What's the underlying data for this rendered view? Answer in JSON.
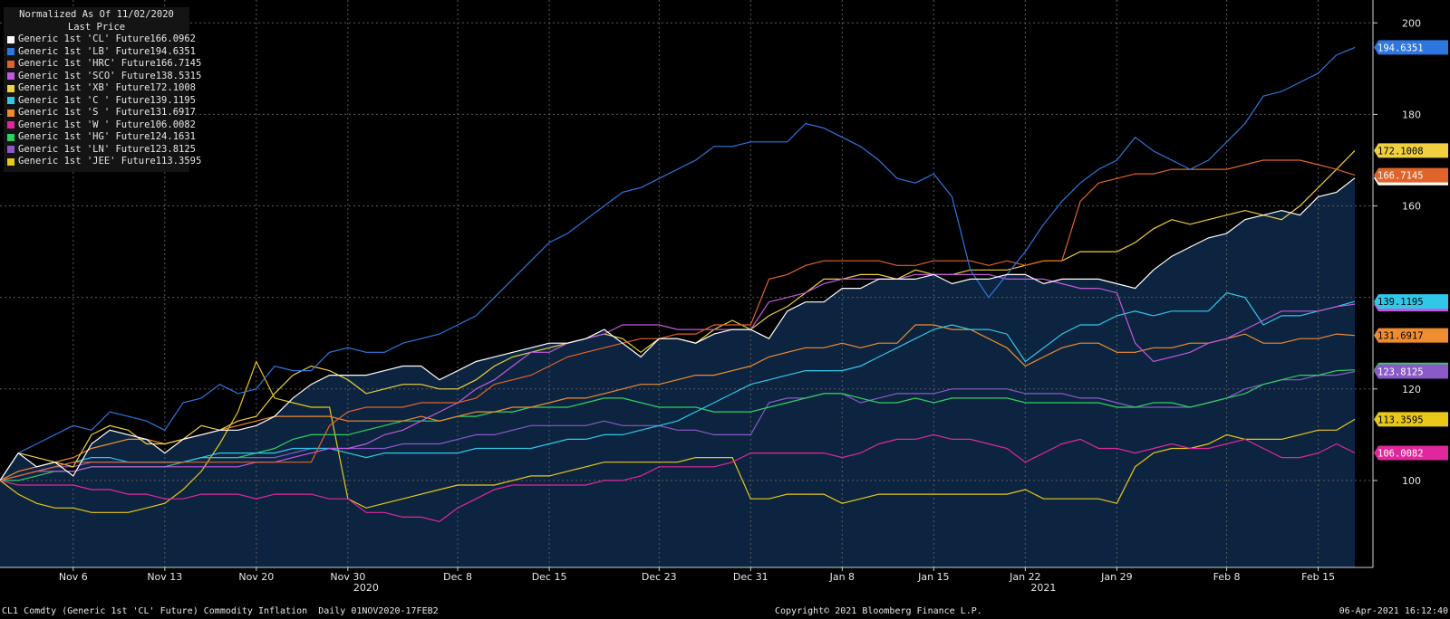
{
  "legend": {
    "title": "Normalized As Of 11/02/2020",
    "subtitle": "Last Price"
  },
  "footer": {
    "left": "CL1 Comdty (Generic 1st 'CL' Future) Commodity Inflation  Daily 01NOV2020-17FEB2",
    "center": "Copyright© 2021 Bloomberg Finance L.P.",
    "right": "06-Apr-2021 16:12:40"
  },
  "chart_data": {
    "type": "line",
    "x": [
      "2020-11-02",
      "2020-11-03",
      "2020-11-04",
      "2020-11-05",
      "2020-11-06",
      "2020-11-09",
      "2020-11-10",
      "2020-11-11",
      "2020-11-12",
      "2020-11-13",
      "2020-11-16",
      "2020-11-17",
      "2020-11-18",
      "2020-11-19",
      "2020-11-20",
      "2020-11-23",
      "2020-11-24",
      "2020-11-25",
      "2020-11-27",
      "2020-11-30",
      "2020-12-01",
      "2020-12-02",
      "2020-12-03",
      "2020-12-04",
      "2020-12-07",
      "2020-12-08",
      "2020-12-09",
      "2020-12-10",
      "2020-12-11",
      "2020-12-14",
      "2020-12-15",
      "2020-12-16",
      "2020-12-17",
      "2020-12-18",
      "2020-12-21",
      "2020-12-22",
      "2020-12-23",
      "2020-12-24",
      "2020-12-28",
      "2020-12-29",
      "2020-12-30",
      "2020-12-31",
      "2021-01-04",
      "2021-01-05",
      "2021-01-06",
      "2021-01-07",
      "2021-01-08",
      "2021-01-11",
      "2021-01-12",
      "2021-01-13",
      "2021-01-14",
      "2021-01-15",
      "2021-01-18",
      "2021-01-19",
      "2021-01-20",
      "2021-01-21",
      "2021-01-22",
      "2021-01-25",
      "2021-01-26",
      "2021-01-27",
      "2021-01-28",
      "2021-01-29",
      "2021-02-01",
      "2021-02-02",
      "2021-02-03",
      "2021-02-04",
      "2021-02-05",
      "2021-02-08",
      "2021-02-09",
      "2021-02-10",
      "2021-02-11",
      "2021-02-12",
      "2021-02-15",
      "2021-02-16",
      "2021-02-17"
    ],
    "x_ticks": [
      {
        "date": "2020-11-06",
        "label": "Nov 6"
      },
      {
        "date": "2020-11-13",
        "label": "Nov 13"
      },
      {
        "date": "2020-11-20",
        "label": "Nov 20"
      },
      {
        "date": "2020-11-30",
        "label": "Nov 30"
      },
      {
        "date": "2020-12-08",
        "label": "Dec 8"
      },
      {
        "date": "2020-12-15",
        "label": "Dec 15"
      },
      {
        "date": "2020-12-23",
        "label": "Dec 23"
      },
      {
        "date": "2020-12-31",
        "label": "Dec 31"
      },
      {
        "date": "2021-01-08",
        "label": "Jan 8"
      },
      {
        "date": "2021-01-15",
        "label": "Jan 15"
      },
      {
        "date": "2021-01-22",
        "label": "Jan 22"
      },
      {
        "date": "2021-01-29",
        "label": "Jan 29"
      },
      {
        "date": "2021-02-08",
        "label": "Feb 8"
      },
      {
        "date": "2021-02-15",
        "label": "Feb 15"
      }
    ],
    "year_labels": [
      {
        "date": "2020-11-30",
        "label": "2020"
      },
      {
        "date": "2021-01-22",
        "label": "2021"
      }
    ],
    "y_ticks": [
      100,
      120,
      160,
      180,
      200
    ],
    "y_gridlines": [
      100,
      120,
      140,
      160,
      180,
      200
    ],
    "ylim": [
      81,
      205
    ],
    "grid": true,
    "legend_position": "top-left",
    "series": [
      {
        "name": "Generic 1st 'CL' Future",
        "last": "166.0962",
        "color": "#ffffff",
        "fill": true,
        "values": [
          100,
          106,
          103,
          104,
          101,
          108,
          111,
          110,
          109,
          106,
          109,
          110,
          111,
          111,
          112,
          114,
          118,
          121,
          123,
          123,
          123,
          124,
          125,
          125,
          122,
          124,
          126,
          127,
          128,
          129,
          130,
          130,
          131,
          133,
          130,
          127,
          131,
          131,
          130,
          132,
          133,
          133,
          131,
          137,
          139,
          139,
          142,
          142,
          144,
          144,
          144,
          145,
          143,
          144,
          144,
          145,
          145,
          143,
          144,
          144,
          144,
          143,
          142,
          146,
          149,
          151,
          153,
          154,
          157,
          158,
          159,
          158,
          162,
          163,
          166.0962
        ]
      },
      {
        "name": "Generic 1st 'LB' Future",
        "last": "194.6351",
        "color": "#2e77e0",
        "fill": false,
        "values": [
          100,
          106,
          108,
          110,
          112,
          111,
          115,
          114,
          113,
          111,
          117,
          118,
          121,
          119,
          120,
          125,
          124,
          124,
          128,
          129,
          128,
          128,
          130,
          131,
          132,
          134,
          136,
          140,
          144,
          148,
          152,
          154,
          157,
          160,
          163,
          164,
          166,
          168,
          170,
          173,
          173,
          174,
          174,
          174,
          178,
          177,
          175,
          173,
          170,
          166,
          165,
          167,
          162,
          146,
          140,
          145,
          150,
          156,
          161,
          165,
          168,
          170,
          175,
          172,
          170,
          168,
          170,
          174,
          178,
          184,
          185,
          187,
          189,
          193,
          194.6351
        ]
      },
      {
        "name": "Generic 1st 'HRC' Future",
        "last": "166.7145",
        "color": "#e0642a",
        "fill": false,
        "values": [
          100,
          101,
          102,
          103,
          104,
          104,
          104,
          104,
          104,
          104,
          104,
          104,
          104,
          104,
          104,
          104,
          104,
          104,
          112,
          115,
          116,
          116,
          116,
          117,
          117,
          117,
          118,
          121,
          122,
          123,
          125,
          127,
          128,
          129,
          130,
          131,
          131,
          132,
          132,
          134,
          134,
          134,
          144,
          145,
          147,
          148,
          148,
          148,
          148,
          147,
          147,
          148,
          148,
          148,
          147,
          148,
          147,
          148,
          148,
          161,
          165,
          166,
          167,
          167,
          168,
          168,
          168,
          168,
          169,
          170,
          170,
          170,
          169,
          168,
          166.7145
        ]
      },
      {
        "name": "Generic 1st 'SCO' Future",
        "last": "138.5315",
        "color": "#c05adc",
        "fill": false,
        "values": [
          100,
          101,
          102,
          102,
          102,
          103,
          103,
          103,
          103,
          103,
          103,
          103,
          103,
          103,
          104,
          104,
          105,
          106,
          107,
          107,
          108,
          110,
          111,
          113,
          115,
          117,
          120,
          122,
          125,
          128,
          128,
          130,
          131,
          132,
          134,
          134,
          134,
          133,
          133,
          133,
          133,
          133,
          139,
          140,
          141,
          143,
          144,
          144,
          144,
          144,
          145,
          145,
          145,
          145,
          145,
          144,
          144,
          144,
          143,
          142,
          142,
          141,
          130,
          126,
          127,
          128,
          130,
          131,
          133,
          135,
          137,
          137,
          137,
          138,
          138.5315
        ]
      },
      {
        "name": "Generic 1st 'XB' Future",
        "last": "172.1008",
        "color": "#f0d040",
        "fill": false,
        "values": [
          100,
          106,
          105,
          104,
          103,
          110,
          112,
          111,
          108,
          108,
          109,
          112,
          111,
          113,
          114,
          119,
          123,
          125,
          124,
          122,
          119,
          120,
          121,
          121,
          120,
          120,
          122,
          125,
          127,
          128,
          129,
          130,
          131,
          132,
          131,
          128,
          131,
          131,
          130,
          133,
          135,
          133,
          136,
          138,
          141,
          144,
          144,
          145,
          145,
          144,
          146,
          145,
          145,
          146,
          146,
          146,
          147,
          148,
          148,
          150,
          150,
          150,
          152,
          155,
          157,
          156,
          157,
          158,
          159,
          158,
          157,
          160,
          164,
          168,
          172.1008
        ]
      },
      {
        "name": "Generic 1st 'C ' Future",
        "last": "139.1195",
        "color": "#30c8e8",
        "fill": false,
        "values": [
          100,
          101,
          102,
          103,
          104,
          105,
          105,
          104,
          104,
          104,
          104,
          105,
          106,
          106,
          106,
          106,
          107,
          107,
          107,
          106,
          105,
          106,
          106,
          106,
          106,
          106,
          107,
          107,
          107,
          107,
          108,
          109,
          109,
          110,
          110,
          111,
          112,
          113,
          115,
          117,
          119,
          121,
          122,
          123,
          124,
          124,
          124,
          125,
          127,
          129,
          131,
          133,
          134,
          133,
          133,
          132,
          126,
          129,
          132,
          134,
          134,
          136,
          137,
          136,
          137,
          137,
          137,
          141,
          140,
          134,
          136,
          136,
          137,
          138,
          139.1195
        ]
      },
      {
        "name": "Generic 1st 'S ' Future",
        "last": "131.6917",
        "color": "#f08c30",
        "fill": false,
        "values": [
          100,
          102,
          103,
          104,
          105,
          107,
          108,
          109,
          109,
          108,
          109,
          110,
          111,
          112,
          113,
          114,
          114,
          114,
          114,
          113,
          113,
          113,
          113,
          114,
          113,
          114,
          115,
          115,
          116,
          116,
          117,
          118,
          118,
          119,
          120,
          121,
          121,
          122,
          123,
          123,
          124,
          125,
          127,
          128,
          129,
          129,
          130,
          129,
          130,
          130,
          134,
          134,
          133,
          133,
          131,
          129,
          125,
          127,
          129,
          130,
          130,
          128,
          128,
          129,
          129,
          130,
          130,
          131,
          132,
          130,
          130,
          131,
          131,
          132,
          131.6917
        ]
      },
      {
        "name": "Generic 1st 'W ' Future",
        "last": "106.0082",
        "color": "#e0289c",
        "fill": false,
        "values": [
          100,
          99,
          99,
          99,
          99,
          98,
          98,
          97,
          97,
          96,
          96,
          97,
          97,
          97,
          96,
          97,
          97,
          97,
          96,
          96,
          93,
          93,
          92,
          92,
          91,
          94,
          96,
          98,
          99,
          99,
          99,
          99,
          99,
          100,
          100,
          101,
          103,
          103,
          103,
          103,
          104,
          106,
          106,
          106,
          106,
          106,
          105,
          106,
          108,
          109,
          109,
          110,
          109,
          109,
          108,
          107,
          104,
          106,
          108,
          109,
          107,
          107,
          106,
          107,
          108,
          107,
          107,
          108,
          109,
          107,
          105,
          105,
          106,
          108,
          106.0082
        ]
      },
      {
        "name": "Generic 1st 'HG' Future",
        "last": "124.1631",
        "color": "#30d060",
        "fill": false,
        "values": [
          100,
          100,
          101,
          102,
          102,
          103,
          103,
          103,
          103,
          103,
          104,
          105,
          105,
          105,
          106,
          107,
          109,
          110,
          110,
          110,
          111,
          112,
          113,
          113,
          113,
          114,
          114,
          115,
          115,
          116,
          116,
          116,
          117,
          118,
          118,
          117,
          116,
          116,
          116,
          115,
          115,
          115,
          116,
          117,
          118,
          119,
          119,
          118,
          117,
          117,
          118,
          117,
          118,
          118,
          118,
          118,
          117,
          117,
          117,
          117,
          117,
          116,
          116,
          117,
          117,
          116,
          117,
          118,
          119,
          121,
          122,
          123,
          123,
          124,
          124.1631
        ]
      },
      {
        "name": "Generic 1st 'LN' Future",
        "last": "123.8125",
        "color": "#8a5ac8",
        "fill": false,
        "values": [
          100,
          101,
          102,
          103,
          103,
          104,
          104,
          104,
          104,
          104,
          104,
          105,
          105,
          105,
          105,
          105,
          106,
          107,
          107,
          107,
          107,
          107,
          108,
          108,
          108,
          109,
          110,
          110,
          111,
          112,
          112,
          112,
          112,
          113,
          112,
          112,
          112,
          111,
          111,
          110,
          110,
          110,
          117,
          118,
          118,
          119,
          119,
          117,
          118,
          119,
          119,
          119,
          120,
          120,
          120,
          120,
          119,
          119,
          119,
          118,
          118,
          117,
          116,
          116,
          116,
          116,
          117,
          118,
          120,
          121,
          122,
          122,
          123,
          123,
          123.8125
        ]
      },
      {
        "name": "Generic 1st 'JEE' Future",
        "last": "113.3595",
        "color": "#e8c818",
        "fill": false,
        "values": [
          100,
          97,
          95,
          94,
          94,
          93,
          93,
          93,
          94,
          95,
          98,
          102,
          108,
          115,
          126,
          118,
          117,
          116,
          116,
          96,
          94,
          95,
          96,
          97,
          98,
          99,
          99,
          99,
          100,
          101,
          101,
          102,
          103,
          104,
          104,
          104,
          104,
          104,
          105,
          105,
          105,
          96,
          96,
          97,
          97,
          97,
          95,
          96,
          97,
          97,
          97,
          97,
          97,
          97,
          97,
          97,
          98,
          96,
          96,
          96,
          96,
          95,
          103,
          106,
          107,
          107,
          108,
          110,
          109,
          109,
          109,
          110,
          111,
          111,
          113.3595
        ]
      }
    ]
  }
}
